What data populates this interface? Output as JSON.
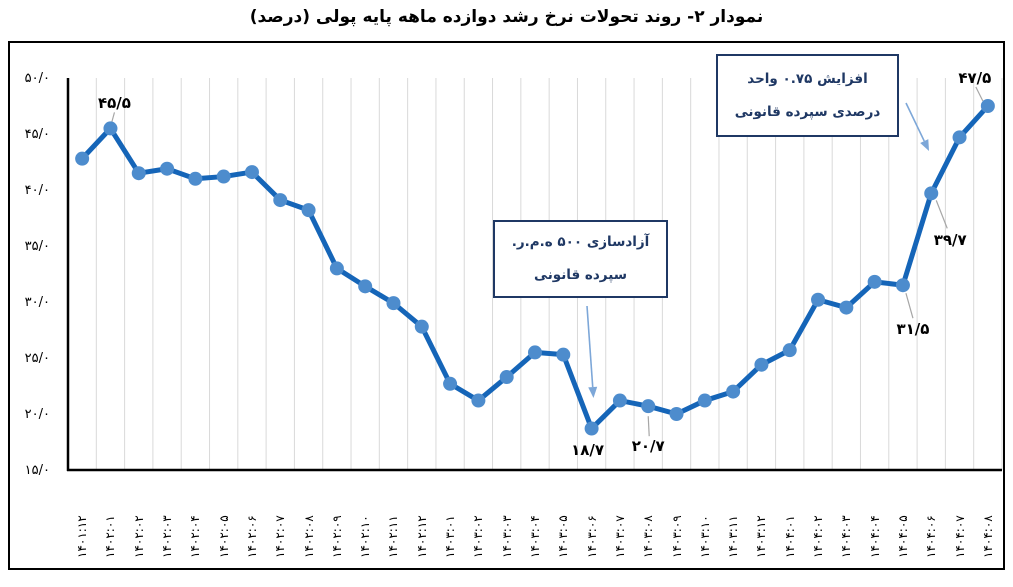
{
  "title": "نمودار ۲- روند تحولات نرخ رشد دوازده ماهه پایه پولی (درصد)",
  "chart_data": {
    "type": "line",
    "title": "نمودار ۲- روند تحولات نرخ رشد دوازده ماهه پایه پولی (درصد)",
    "ylabel": "",
    "xlabel": "",
    "ylim": [
      15,
      50
    ],
    "grid": "vertical-only",
    "legend": "none",
    "categories": [
      "۱۴۰۱:۱۲",
      "۱۴۰۲:۰۱",
      "۱۴۰۲:۰۲",
      "۱۴۰۲:۰۳",
      "۱۴۰۲:۰۴",
      "۱۴۰۲:۰۵",
      "۱۴۰۲:۰۶",
      "۱۴۰۲:۰۷",
      "۱۴۰۲:۰۸",
      "۱۴۰۲:۰۹",
      "۱۴۰۲:۱۰",
      "۱۴۰۲:۱۱",
      "۱۴۰۲:۱۲",
      "۱۴۰۳:۰۱",
      "۱۴۰۳:۰۲",
      "۱۴۰۳:۰۳",
      "۱۴۰۳:۰۴",
      "۱۴۰۳:۰۵",
      "۱۴۰۳:۰۶",
      "۱۴۰۳:۰۷",
      "۱۴۰۳:۰۸",
      "۱۴۰۳:۰۹",
      "۱۴۰۳:۱۰",
      "۱۴۰۳:۱۱",
      "۱۴۰۳:۱۲",
      "۱۴۰۴:۰۱",
      "۱۴۰۴:۰۲",
      "۱۴۰۴:۰۳",
      "۱۴۰۴:۰۴",
      "۱۴۰۴:۰۵",
      "۱۴۰۴:۰۶",
      "۱۴۰۴:۰۷",
      "۱۴۰۴:۰۸"
    ],
    "values": [
      42.8,
      45.5,
      41.5,
      41.9,
      41.0,
      41.2,
      41.6,
      39.1,
      38.2,
      33.0,
      31.4,
      29.9,
      27.8,
      22.7,
      21.2,
      23.3,
      25.5,
      25.3,
      18.7,
      21.2,
      20.7,
      20.0,
      21.2,
      22.0,
      24.4,
      25.7,
      30.2,
      29.5,
      31.8,
      31.5,
      39.7,
      44.7,
      47.5
    ],
    "y_ticks": {
      "labels": [
        "۵۰/۰",
        "۴۵/۰",
        "۴۰/۰",
        "۳۵/۰",
        "۳۰/۰",
        "۲۵/۰",
        "۲۰/۰",
        "۱۵/۰"
      ],
      "values": [
        50,
        45,
        40,
        35,
        30,
        25,
        20,
        15
      ]
    },
    "point_labels": [
      {
        "index": 1,
        "text": "۴۵/۵",
        "value": 45.5
      },
      {
        "index": 18,
        "text": "۱۸/۷",
        "value": 18.7
      },
      {
        "index": 20,
        "text": "۲۰/۷",
        "value": 20.7
      },
      {
        "index": 29,
        "text": "۳۱/۵",
        "value": 31.5
      },
      {
        "index": 30,
        "text": "۳۹/۷",
        "value": 39.7
      },
      {
        "index": 32,
        "text": "۴۷/۵",
        "value": 47.5
      }
    ]
  },
  "annotations": [
    {
      "lines": [
        "آزادسازی ۵۰۰ ه.م.ر.",
        "سپرده قانونی"
      ],
      "points_to_index": 18
    },
    {
      "lines": [
        "افزایش ۰.۷۵ واحد",
        "درصدی سپرده قانونی"
      ],
      "points_to_index": 30
    }
  ],
  "colors": {
    "line": "#1565B8",
    "marker": "#4D8CCD",
    "grid": "#D9D9D9",
    "axis": "#000000",
    "annotation_border": "#1F3864",
    "annotation_text": "#1F3864",
    "arrow": "#7DA7D8",
    "leader": "#A6A6A6",
    "label_text": "#000000"
  }
}
